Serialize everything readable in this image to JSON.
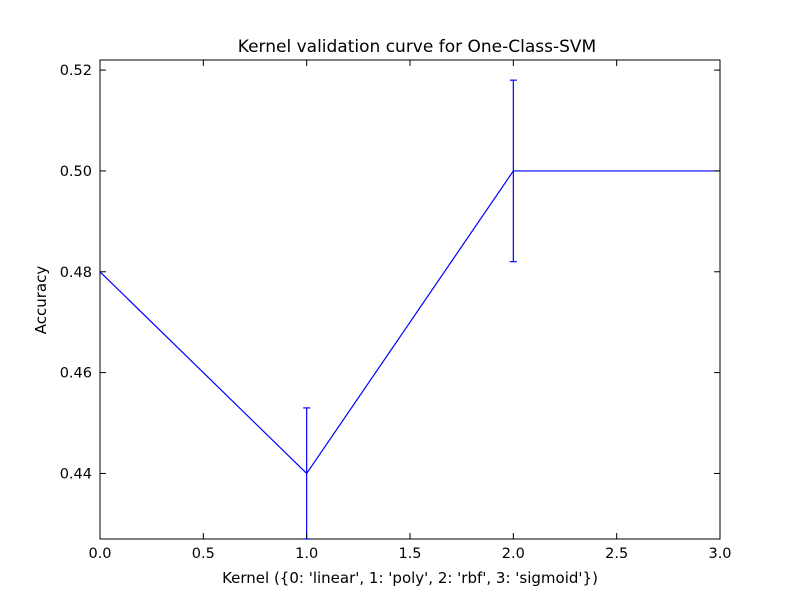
{
  "chart_data": {
    "type": "line",
    "title": "Kernel validation curve for One-Class-SVM",
    "xlabel": "Kernel ({0: 'linear', 1: 'poly', 2: 'rbf', 3: 'sigmoid'})",
    "ylabel": "Accuracy",
    "xlim": [
      0.0,
      3.0
    ],
    "ylim": [
      0.427,
      0.522
    ],
    "xticks": [
      "0.0",
      "0.5",
      "1.0",
      "1.5",
      "2.0",
      "2.5",
      "3.0"
    ],
    "yticks": [
      "0.44",
      "0.46",
      "0.48",
      "0.50",
      "0.52"
    ],
    "grid": false,
    "series": [
      {
        "color": "#0000ff",
        "x": [
          0,
          1,
          2,
          3
        ],
        "y": [
          0.48,
          0.44,
          0.5,
          0.5
        ],
        "yerr": [
          0.0,
          0.013,
          0.018,
          0.0
        ]
      }
    ]
  }
}
